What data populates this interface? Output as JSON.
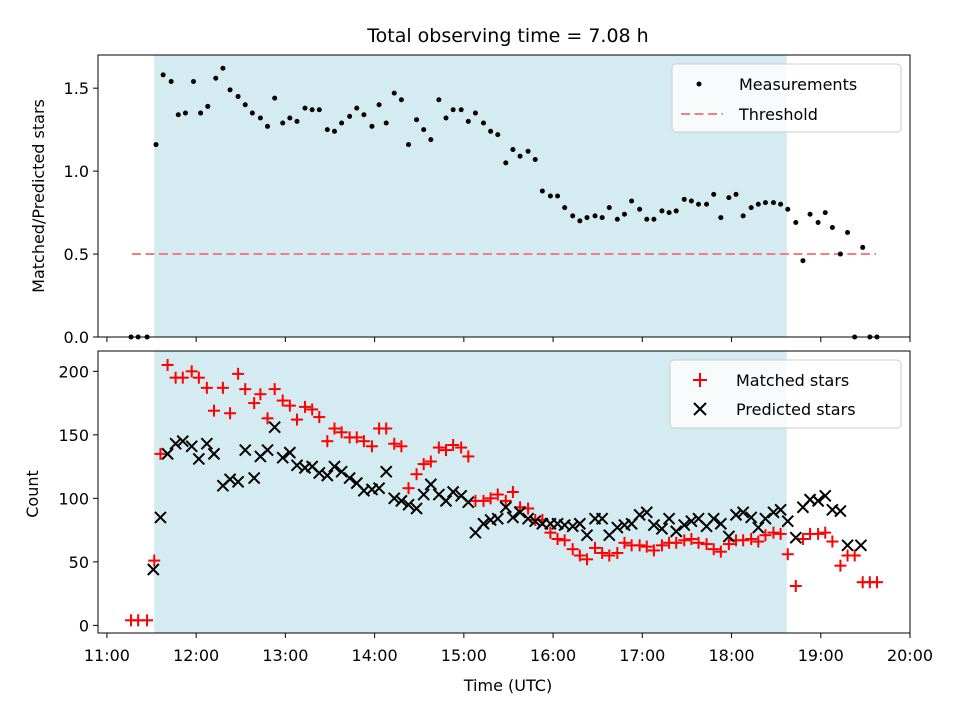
{
  "title": "Total observing time = 7.08 h",
  "chart_data": [
    {
      "type": "scatter",
      "ylabel": "Matched/Predicted stars",
      "xlabel": "",
      "xlim_hours": [
        10.9,
        20.0
      ],
      "ylim": [
        0,
        1.7
      ],
      "yticks": [
        0.0,
        0.5,
        1.0,
        1.5
      ],
      "ytick_labels": [
        "0.0",
        "0.5",
        "1.0",
        "1.5"
      ],
      "observing_window_hours": [
        11.53,
        18.62
      ],
      "observing_window_color": "#d4ebf1",
      "threshold": {
        "name": "Threshold",
        "value": 0.5,
        "x_range": [
          11.28,
          19.62
        ],
        "color": "#f08080"
      },
      "legend": {
        "placement": "top-right",
        "entries": [
          "Measurements",
          "Threshold"
        ]
      },
      "series": [
        {
          "name": "Measurements",
          "color": "#000000",
          "marker": "dot",
          "x": [
            11.27,
            11.35,
            11.45,
            11.55,
            11.63,
            11.72,
            11.8,
            11.88,
            11.97,
            12.05,
            12.13,
            12.22,
            12.3,
            12.38,
            12.47,
            12.55,
            12.63,
            12.72,
            12.8,
            12.88,
            12.97,
            13.05,
            13.13,
            13.22,
            13.3,
            13.38,
            13.47,
            13.55,
            13.63,
            13.72,
            13.8,
            13.88,
            13.97,
            14.05,
            14.13,
            14.22,
            14.3,
            14.38,
            14.47,
            14.55,
            14.63,
            14.72,
            14.8,
            14.88,
            14.97,
            15.05,
            15.13,
            15.22,
            15.3,
            15.38,
            15.47,
            15.55,
            15.63,
            15.72,
            15.8,
            15.88,
            15.97,
            16.05,
            16.13,
            16.22,
            16.3,
            16.38,
            16.47,
            16.55,
            16.63,
            16.72,
            16.8,
            16.88,
            16.97,
            17.05,
            17.13,
            17.22,
            17.3,
            17.38,
            17.47,
            17.55,
            17.63,
            17.72,
            17.8,
            17.88,
            17.97,
            18.05,
            18.13,
            18.22,
            18.3,
            18.38,
            18.47,
            18.55,
            18.63,
            18.72,
            18.8,
            18.88,
            18.97,
            19.05,
            19.13,
            19.22,
            19.3,
            19.38,
            19.47,
            19.55,
            19.63
          ],
          "y": [
            0.0,
            0.0,
            0.0,
            1.16,
            1.58,
            1.54,
            1.34,
            1.35,
            1.54,
            1.35,
            1.39,
            1.56,
            1.62,
            1.49,
            1.45,
            1.4,
            1.35,
            1.32,
            1.27,
            1.44,
            1.29,
            1.32,
            1.3,
            1.38,
            1.37,
            1.37,
            1.25,
            1.24,
            1.29,
            1.33,
            1.38,
            1.34,
            1.27,
            1.4,
            1.29,
            1.47,
            1.43,
            1.16,
            1.31,
            1.25,
            1.19,
            1.43,
            1.32,
            1.37,
            1.37,
            1.3,
            1.35,
            1.29,
            1.24,
            1.22,
            1.05,
            1.13,
            1.09,
            1.12,
            1.07,
            0.88,
            0.85,
            0.85,
            0.78,
            0.73,
            0.7,
            0.72,
            0.73,
            0.72,
            0.78,
            0.71,
            0.74,
            0.82,
            0.77,
            0.71,
            0.71,
            0.76,
            0.75,
            0.76,
            0.83,
            0.82,
            0.8,
            0.8,
            0.86,
            0.72,
            0.84,
            0.86,
            0.73,
            0.78,
            0.8,
            0.81,
            0.81,
            0.8,
            0.77,
            0.69,
            0.46,
            0.74,
            0.69,
            0.75,
            0.66,
            0.5,
            0.63,
            0.0,
            0.54,
            0.0,
            0.0
          ]
        }
      ]
    },
    {
      "type": "scatter",
      "ylabel": "Count",
      "xlabel": "Time (UTC)",
      "xlim_hours": [
        10.9,
        20.0
      ],
      "ylim": [
        -6,
        216
      ],
      "yticks": [
        0,
        50,
        100,
        150,
        200
      ],
      "ytick_labels": [
        "0",
        "50",
        "100",
        "150",
        "200"
      ],
      "xticks_hours": [
        11,
        12,
        13,
        14,
        15,
        16,
        17,
        18,
        19,
        20
      ],
      "xtick_labels": [
        "11:00",
        "12:00",
        "13:00",
        "14:00",
        "15:00",
        "16:00",
        "17:00",
        "18:00",
        "19:00",
        "20:00"
      ],
      "observing_window_hours": [
        11.53,
        18.62
      ],
      "observing_window_color": "#d4ebf1",
      "legend": {
        "placement": "top-right",
        "entries": [
          "Matched stars",
          "Predicted stars"
        ]
      },
      "series": [
        {
          "name": "Matched stars",
          "color": "#ff0000",
          "marker": "plus",
          "x": [
            11.27,
            11.35,
            11.45,
            11.53,
            11.6,
            11.68,
            11.77,
            11.85,
            11.95,
            12.03,
            12.12,
            12.2,
            12.3,
            12.38,
            12.47,
            12.55,
            12.65,
            12.72,
            12.8,
            12.88,
            12.97,
            13.05,
            13.13,
            13.22,
            13.3,
            13.38,
            13.47,
            13.55,
            13.63,
            13.72,
            13.8,
            13.88,
            13.97,
            14.05,
            14.13,
            14.22,
            14.3,
            14.38,
            14.47,
            14.55,
            14.63,
            14.72,
            14.8,
            14.88,
            14.97,
            15.05,
            15.13,
            15.22,
            15.3,
            15.38,
            15.47,
            15.55,
            15.63,
            15.72,
            15.8,
            15.88,
            15.97,
            16.05,
            16.13,
            16.22,
            16.3,
            16.38,
            16.47,
            16.55,
            16.63,
            16.72,
            16.8,
            16.88,
            16.97,
            17.05,
            17.13,
            17.22,
            17.3,
            17.38,
            17.47,
            17.55,
            17.63,
            17.72,
            17.8,
            17.88,
            17.97,
            18.05,
            18.13,
            18.22,
            18.3,
            18.38,
            18.47,
            18.55,
            18.63,
            18.72,
            18.8,
            18.88,
            18.97,
            19.05,
            19.13,
            19.22,
            19.3,
            19.38,
            19.47,
            19.55,
            19.63
          ],
          "y": [
            4,
            4,
            4,
            51,
            135,
            205,
            195,
            195,
            200,
            195,
            187,
            169,
            187,
            167,
            198,
            186,
            175,
            182,
            163,
            186,
            177,
            173,
            162,
            172,
            170,
            164,
            145,
            155,
            152,
            148,
            148,
            145,
            141,
            155,
            155,
            143,
            141,
            108,
            119,
            127,
            129,
            140,
            138,
            142,
            140,
            133,
            98,
            98,
            100,
            103,
            98,
            105,
            93,
            92,
            83,
            83,
            73,
            68,
            67,
            60,
            55,
            52,
            61,
            57,
            55,
            57,
            65,
            63,
            63,
            62,
            59,
            63,
            65,
            65,
            67,
            68,
            65,
            64,
            60,
            58,
            64,
            67,
            67,
            68,
            66,
            71,
            73,
            72,
            56,
            31,
            68,
            72,
            72,
            73,
            66,
            47,
            55,
            55,
            34,
            34,
            34
          ]
        },
        {
          "name": "Predicted stars",
          "color": "#000000",
          "marker": "x",
          "x": [
            11.52,
            11.6,
            11.68,
            11.77,
            11.85,
            11.95,
            12.03,
            12.12,
            12.2,
            12.3,
            12.38,
            12.47,
            12.55,
            12.65,
            12.72,
            12.8,
            12.88,
            12.97,
            13.05,
            13.13,
            13.22,
            13.3,
            13.38,
            13.47,
            13.55,
            13.63,
            13.72,
            13.8,
            13.88,
            13.97,
            14.05,
            14.13,
            14.22,
            14.3,
            14.38,
            14.47,
            14.55,
            14.63,
            14.72,
            14.8,
            14.88,
            14.97,
            15.05,
            15.13,
            15.22,
            15.3,
            15.38,
            15.47,
            15.55,
            15.63,
            15.72,
            15.8,
            15.88,
            15.97,
            16.05,
            16.13,
            16.22,
            16.3,
            16.38,
            16.47,
            16.55,
            16.63,
            16.72,
            16.8,
            16.88,
            16.97,
            17.05,
            17.13,
            17.22,
            17.3,
            17.38,
            17.47,
            17.55,
            17.63,
            17.72,
            17.8,
            17.88,
            17.97,
            18.05,
            18.13,
            18.22,
            18.3,
            18.38,
            18.47,
            18.55,
            18.63,
            18.72,
            18.8,
            18.88,
            18.97,
            19.05,
            19.13,
            19.22,
            19.3,
            19.45
          ],
          "y": [
            44,
            85,
            135,
            143,
            145,
            141,
            131,
            143,
            135,
            110,
            115,
            113,
            138,
            116,
            133,
            138,
            156,
            132,
            136,
            126,
            124,
            125,
            120,
            118,
            125,
            121,
            116,
            112,
            106,
            107,
            108,
            121,
            100,
            98,
            95,
            92,
            103,
            111,
            103,
            98,
            105,
            102,
            97,
            73,
            80,
            83,
            84,
            93,
            85,
            89,
            84,
            82,
            80,
            80,
            80,
            79,
            78,
            80,
            71,
            84,
            84,
            71,
            77,
            79,
            80,
            87,
            89,
            79,
            76,
            84,
            74,
            79,
            82,
            84,
            78,
            84,
            80,
            70,
            87,
            89,
            85,
            77,
            84,
            89,
            91,
            82,
            69,
            93,
            99,
            98,
            102,
            91,
            90,
            63,
            63
          ]
        }
      ]
    }
  ]
}
